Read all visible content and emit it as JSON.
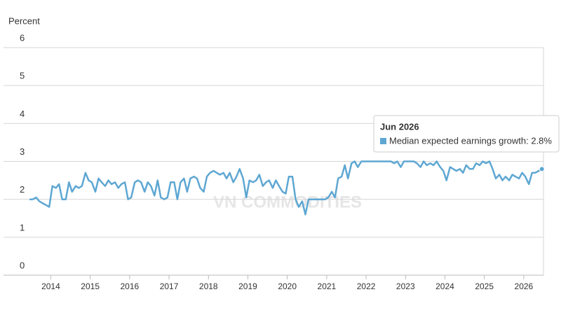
{
  "chart_data": {
    "type": "line",
    "y_label": "Percent",
    "watermark": "VN COMMODITIES",
    "xlim": [
      2012.8,
      2026.5
    ],
    "xticks": [
      2014,
      2015,
      2016,
      2017,
      2018,
      2019,
      2020,
      2021,
      2022,
      2023,
      2024,
      2025,
      2026
    ],
    "ylim": [
      0,
      6
    ],
    "yticks": [
      0,
      1,
      2,
      3,
      4,
      5,
      6
    ],
    "grid": true,
    "x": [
      2013.46,
      2013.54,
      2013.63,
      2013.71,
      2013.79,
      2013.88,
      2013.96,
      2014.04,
      2014.13,
      2014.21,
      2014.29,
      2014.38,
      2014.46,
      2014.54,
      2014.63,
      2014.71,
      2014.79,
      2014.88,
      2014.96,
      2015.04,
      2015.13,
      2015.21,
      2015.29,
      2015.38,
      2015.46,
      2015.54,
      2015.63,
      2015.71,
      2015.79,
      2015.88,
      2015.96,
      2016.04,
      2016.13,
      2016.21,
      2016.29,
      2016.38,
      2016.46,
      2016.54,
      2016.63,
      2016.71,
      2016.79,
      2016.88,
      2016.96,
      2017.04,
      2017.13,
      2017.21,
      2017.29,
      2017.38,
      2017.46,
      2017.54,
      2017.63,
      2017.71,
      2017.79,
      2017.88,
      2017.96,
      2018.04,
      2018.13,
      2018.21,
      2018.29,
      2018.38,
      2018.46,
      2018.54,
      2018.63,
      2018.71,
      2018.79,
      2018.88,
      2018.96,
      2019.04,
      2019.13,
      2019.21,
      2019.29,
      2019.38,
      2019.46,
      2019.54,
      2019.63,
      2019.71,
      2019.79,
      2019.88,
      2019.96,
      2020.04,
      2020.13,
      2020.21,
      2020.29,
      2020.38,
      2020.46,
      2020.54,
      2020.63,
      2020.71,
      2020.79,
      2020.88,
      2020.96,
      2021.04,
      2021.13,
      2021.21,
      2021.29,
      2021.38,
      2021.46,
      2021.54,
      2021.63,
      2021.71,
      2021.79,
      2021.88,
      2021.96,
      2022.04,
      2022.13,
      2022.21,
      2022.29,
      2022.38,
      2022.46,
      2022.54,
      2022.63,
      2022.71,
      2022.79,
      2022.88,
      2022.96,
      2023.04,
      2023.13,
      2023.21,
      2023.29,
      2023.38,
      2023.46,
      2023.54,
      2023.63,
      2023.71,
      2023.79,
      2023.88,
      2023.96,
      2024.04,
      2024.13,
      2024.21,
      2024.29,
      2024.38,
      2024.46,
      2024.54,
      2024.63,
      2024.71,
      2024.79,
      2024.88,
      2024.96,
      2025.04,
      2025.13,
      2025.21,
      2025.29,
      2025.38,
      2025.46,
      2025.54,
      2025.63,
      2025.71,
      2025.79,
      2025.88,
      2025.96,
      2026.04,
      2026.13,
      2026.21,
      2026.29,
      2026.38,
      2026.46
    ],
    "series": [
      {
        "name": "Median expected earnings growth",
        "color": "#5ea7d2",
        "values": [
          2.0,
          2.0,
          2.05,
          1.95,
          1.9,
          1.85,
          1.8,
          2.35,
          2.3,
          2.4,
          2.0,
          2.0,
          2.45,
          2.2,
          2.35,
          2.3,
          2.35,
          2.7,
          2.5,
          2.45,
          2.2,
          2.55,
          2.45,
          2.35,
          2.5,
          2.4,
          2.45,
          2.3,
          2.4,
          2.45,
          2.0,
          2.05,
          2.45,
          2.5,
          2.45,
          2.2,
          2.45,
          2.35,
          2.1,
          2.5,
          2.05,
          2.0,
          2.05,
          2.45,
          2.45,
          2.0,
          2.45,
          2.55,
          2.2,
          2.55,
          2.6,
          2.55,
          2.3,
          2.2,
          2.6,
          2.7,
          2.75,
          2.7,
          2.65,
          2.7,
          2.55,
          2.7,
          2.45,
          2.6,
          2.8,
          2.55,
          2.05,
          2.5,
          2.45,
          2.5,
          2.65,
          2.35,
          2.45,
          2.5,
          2.3,
          2.5,
          2.35,
          2.2,
          2.15,
          2.6,
          2.6,
          2.0,
          1.8,
          1.95,
          1.6,
          2.0,
          2.0,
          2.0,
          2.0,
          2.0,
          2.0,
          2.05,
          2.2,
          2.05,
          2.55,
          2.6,
          2.9,
          2.55,
          2.95,
          3.0,
          2.85,
          3.0,
          3.0,
          3.0,
          3.0,
          3.0,
          3.0,
          3.0,
          3.0,
          3.0,
          3.0,
          2.95,
          3.0,
          2.85,
          3.0,
          3.0,
          3.0,
          3.0,
          2.95,
          2.85,
          3.0,
          2.9,
          2.95,
          2.9,
          3.0,
          2.85,
          2.75,
          2.5,
          2.85,
          2.8,
          2.75,
          2.8,
          2.7,
          2.9,
          2.8,
          2.8,
          2.95,
          2.9,
          3.0,
          2.95,
          3.0,
          2.8,
          2.55,
          2.65,
          2.5,
          2.6,
          2.5,
          2.65,
          2.6,
          2.55,
          2.7,
          2.6,
          2.4,
          2.7,
          2.7,
          2.75,
          2.8
        ]
      }
    ],
    "tooltip": {
      "title": "Jun 2026",
      "text": "Median expected earnings growth: 2.8%"
    }
  }
}
